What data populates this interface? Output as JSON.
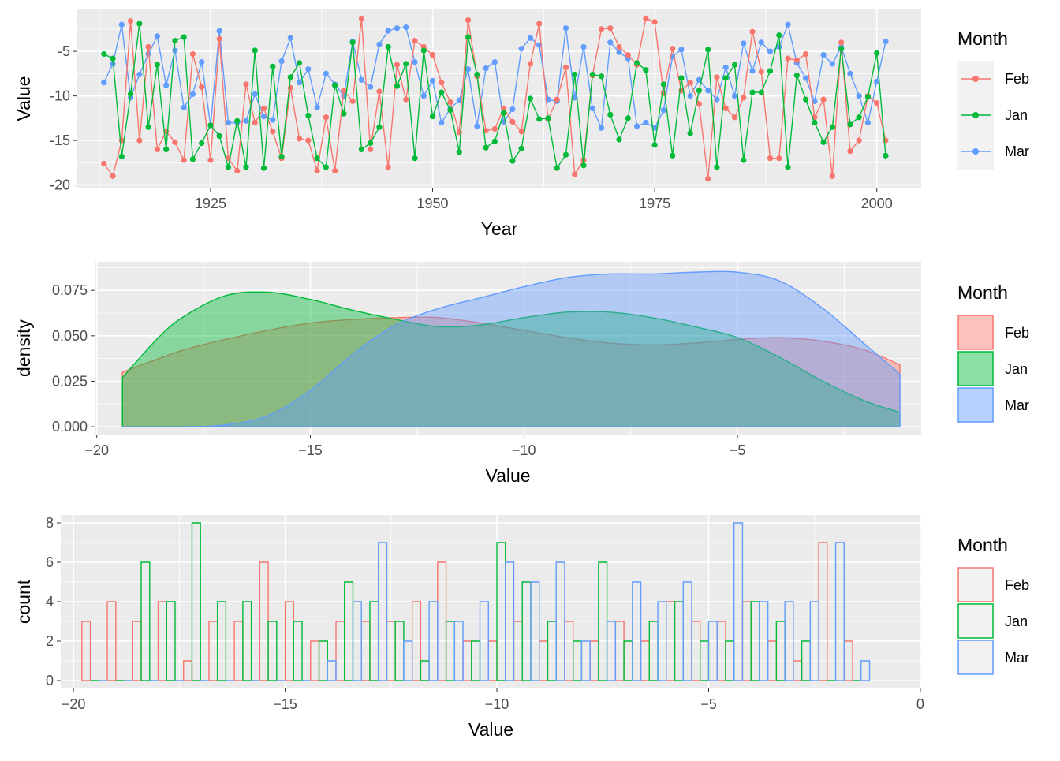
{
  "colors": {
    "Feb": "#F8766D",
    "Jan": "#00BA38",
    "Mar": "#619CFF",
    "panel": "#EBEBEB",
    "grid": "#FFFFFF"
  },
  "chart_data": [
    {
      "type": "line",
      "xlabel": "Year",
      "ylabel": "Value",
      "xlim": [
        1910,
        2005
      ],
      "ylim": [
        -20.3,
        -0.3
      ],
      "x_ticks": [
        1925,
        1950,
        1975,
        2000
      ],
      "y_ticks": [
        -20,
        -15,
        -10,
        -5
      ],
      "grid": true,
      "legend": {
        "title": "Month",
        "position": "right",
        "entries": [
          "Feb",
          "Jan",
          "Mar"
        ]
      },
      "x": [
        1913,
        1914,
        1915,
        1916,
        1917,
        1918,
        1919,
        1920,
        1921,
        1922,
        1923,
        1924,
        1925,
        1926,
        1927,
        1928,
        1929,
        1930,
        1931,
        1932,
        1933,
        1934,
        1935,
        1936,
        1937,
        1938,
        1939,
        1940,
        1941,
        1942,
        1943,
        1944,
        1945,
        1946,
        1947,
        1948,
        1949,
        1950,
        1951,
        1952,
        1953,
        1954,
        1955,
        1956,
        1957,
        1958,
        1959,
        1960,
        1961,
        1962,
        1963,
        1964,
        1965,
        1966,
        1967,
        1968,
        1969,
        1970,
        1971,
        1972,
        1973,
        1974,
        1975,
        1976,
        1977,
        1978,
        1979,
        1980,
        1981,
        1982,
        1983,
        1984,
        1985,
        1986,
        1987,
        1988,
        1989,
        1990,
        1991,
        1992,
        1993,
        1994,
        1995,
        1996,
        1997,
        1998,
        1999,
        2000,
        2001
      ],
      "series": [
        {
          "name": "Feb",
          "values": [
            -17.6,
            -19.0,
            -15.0,
            -1.6,
            -15.0,
            -4.5,
            -16.0,
            -14.0,
            -15.2,
            -17.2,
            -5.3,
            -9.0,
            -17.2,
            -3.6,
            -17.0,
            -18.4,
            -8.7,
            -13.0,
            -11.4,
            -14.0,
            -17.0,
            -9.1,
            -14.8,
            -15.0,
            -18.4,
            -12.4,
            -18.4,
            -9.4,
            -10.6,
            -1.3,
            -16.0,
            -9.5,
            -18.0,
            -6.5,
            -10.4,
            -3.8,
            -4.5,
            -5.4,
            -8.5,
            -10.7,
            -14.1,
            -1.5,
            -7.8,
            -13.9,
            -13.7,
            -11.4,
            -12.9,
            -14.0,
            -6.4,
            -1.9,
            -12.6,
            -10.4,
            -6.8,
            -18.8,
            -17.2,
            -7.7,
            -2.5,
            -2.4,
            -4.5,
            -5.4,
            -6.5,
            -1.3,
            -1.7,
            -9.7,
            -4.7,
            -9.4,
            -8.5,
            -10.9,
            -19.3,
            -7.9,
            -11.4,
            -12.4,
            -10.2,
            -2.8,
            -7.3,
            -17.0,
            -17.0,
            -5.8,
            -6.0,
            -5.3,
            -12.4,
            -10.4,
            -19.0,
            -4.0,
            -16.2,
            -15.0,
            -10.0,
            -10.8,
            -15.0
          ]
        },
        {
          "name": "Jan",
          "values": [
            -5.3,
            -5.8,
            -16.8,
            -9.8,
            -1.9,
            -13.5,
            -6.5,
            -16.0,
            -3.8,
            -3.4,
            -17.1,
            -15.3,
            -13.3,
            -14.5,
            -18.0,
            -12.8,
            -18.0,
            -4.9,
            -18.1,
            -6.7,
            -16.8,
            -7.9,
            -6.3,
            -12.2,
            -17.0,
            -18.0,
            -8.8,
            -12.0,
            -4.0,
            -16.0,
            -15.3,
            -13.5,
            -4.5,
            -8.9,
            -6.4,
            -17.0,
            -4.9,
            -12.3,
            -9.6,
            -11.6,
            -16.3,
            -3.4,
            -7.6,
            -15.8,
            -15.1,
            -11.9,
            -17.3,
            -15.9,
            -10.3,
            -12.6,
            -12.5,
            -18.1,
            -16.6,
            -7.6,
            -17.8,
            -7.6,
            -7.8,
            -12.1,
            -14.9,
            -12.5,
            -6.3,
            -7.1,
            -15.5,
            -8.7,
            -16.7,
            -8.0,
            -14.2,
            -9.4,
            -4.8,
            -18.0,
            -8.0,
            -6.5,
            -17.2,
            -9.6,
            -9.6,
            -7.2,
            -3.2,
            -18.0,
            -7.7,
            -10.4,
            -13.0,
            -15.2,
            -13.5,
            -4.7,
            -13.2,
            -12.4,
            -10.1,
            -5.2,
            -16.7
          ]
        },
        {
          "name": "Mar",
          "values": [
            -8.5,
            -6.4,
            -2.0,
            -10.2,
            -7.6,
            -5.3,
            -3.3,
            -8.8,
            -4.9,
            -11.3,
            -9.8,
            -6.2,
            -13.3,
            -2.7,
            -13.0,
            -13.0,
            -12.8,
            -9.8,
            -12.3,
            -12.7,
            -6.1,
            -3.5,
            -8.5,
            -7.0,
            -11.3,
            -7.5,
            -8.7,
            -10.0,
            -3.9,
            -8.2,
            -9.0,
            -4.2,
            -2.7,
            -2.4,
            -2.3,
            -6.2,
            -10.0,
            -8.3,
            -13.0,
            -11.4,
            -10.5,
            -7.0,
            -13.4,
            -6.9,
            -6.2,
            -12.9,
            -11.5,
            -4.7,
            -3.5,
            -4.3,
            -10.4,
            -10.6,
            -2.4,
            -10.2,
            -4.5,
            -11.4,
            -13.6,
            -4.0,
            -5.1,
            -5.8,
            -13.4,
            -13.0,
            -13.6,
            -11.6,
            -5.6,
            -4.8,
            -10.0,
            -8.2,
            -9.4,
            -10.4,
            -6.8,
            -10.0,
            -4.1,
            -7.2,
            -4.0,
            -5.0,
            -4.5,
            -2.0,
            -6.3,
            -8.0,
            -10.6,
            -5.4,
            -6.4,
            -4.5,
            -7.5,
            -10.0,
            -13.0,
            -8.4,
            -3.9
          ]
        }
      ]
    },
    {
      "type": "area",
      "xlabel": "Value",
      "ylabel": "density",
      "xlim": [
        -20.05,
        -0.7
      ],
      "ylim": [
        -0.0043,
        0.0907
      ],
      "x_ticks": [
        -20,
        -15,
        -10,
        -5
      ],
      "y_ticks": [
        "0.000",
        "0.025",
        "0.050",
        "0.075"
      ],
      "grid": true,
      "legend": {
        "title": "Month",
        "position": "right",
        "entries": [
          "Feb",
          "Jan",
          "Mar"
        ]
      },
      "x": [
        -19.4,
        -18.6,
        -18.0,
        -17.0,
        -16.0,
        -15.0,
        -14.0,
        -13.0,
        -12.0,
        -11.0,
        -10.0,
        -9.0,
        -8.0,
        -7.0,
        -6.0,
        -5.0,
        -4.0,
        -3.0,
        -2.0,
        -1.2
      ],
      "series": [
        {
          "name": "Feb",
          "values": [
            0.03,
            0.037,
            0.042,
            0.048,
            0.053,
            0.057,
            0.059,
            0.06,
            0.06,
            0.057,
            0.053,
            0.049,
            0.046,
            0.045,
            0.046,
            0.048,
            0.049,
            0.047,
            0.042,
            0.034
          ]
        },
        {
          "name": "Jan",
          "values": [
            0.027,
            0.048,
            0.06,
            0.072,
            0.074,
            0.07,
            0.064,
            0.059,
            0.055,
            0.056,
            0.06,
            0.063,
            0.063,
            0.06,
            0.055,
            0.049,
            0.038,
            0.025,
            0.014,
            0.008
          ]
        },
        {
          "name": "Mar",
          "values": [
            0.0,
            0.0,
            0.0,
            0.001,
            0.006,
            0.02,
            0.04,
            0.056,
            0.065,
            0.071,
            0.077,
            0.082,
            0.084,
            0.084,
            0.085,
            0.085,
            0.08,
            0.065,
            0.045,
            0.029
          ]
        }
      ]
    },
    {
      "type": "bar",
      "xlabel": "Value",
      "ylabel": "count",
      "xlim": [
        -20.3,
        0.02
      ],
      "ylim": [
        -0.4,
        8.4
      ],
      "x_ticks": [
        -20,
        -15,
        -10,
        -5,
        0
      ],
      "y_ticks": [
        0,
        2,
        4,
        6,
        8
      ],
      "grid": true,
      "bar_style": "outline",
      "legend": {
        "title": "Month",
        "position": "right",
        "entries": [
          "Feb",
          "Jan",
          "Mar"
        ]
      },
      "bins": [
        -19.5,
        -18.9,
        -18.3,
        -17.7,
        -17.1,
        -16.5,
        -15.9,
        -15.3,
        -14.7,
        -14.1,
        -13.5,
        -12.9,
        -12.3,
        -11.7,
        -11.1,
        -10.5,
        -9.9,
        -9.3,
        -8.7,
        -8.1,
        -7.5,
        -6.9,
        -6.3,
        -5.7,
        -5.1,
        -4.5,
        -3.9,
        -3.3,
        -2.7,
        -2.1,
        -1.5
      ],
      "bin_width": 0.6,
      "series": [
        {
          "name": "Feb",
          "values": [
            3,
            4,
            3,
            4,
            1,
            3,
            3,
            6,
            4,
            2,
            3,
            3,
            3,
            4,
            6,
            2,
            2,
            3,
            2,
            3,
            2,
            3,
            2,
            4,
            3,
            3,
            4,
            2,
            1,
            7,
            2
          ]
        },
        {
          "name": "Jan",
          "values": [
            0,
            0,
            6,
            4,
            8,
            4,
            4,
            3,
            3,
            2,
            5,
            4,
            3,
            1,
            3,
            2,
            7,
            5,
            3,
            2,
            6,
            2,
            3,
            4,
            2,
            2,
            4,
            3,
            2,
            0,
            0
          ]
        },
        {
          "name": "Mar",
          "values": [
            0,
            0,
            0,
            0,
            0,
            0,
            0,
            0,
            0,
            1,
            4,
            7,
            2,
            4,
            3,
            4,
            6,
            5,
            6,
            2,
            3,
            5,
            4,
            5,
            3,
            8,
            4,
            4,
            4,
            7,
            1
          ]
        }
      ]
    }
  ]
}
